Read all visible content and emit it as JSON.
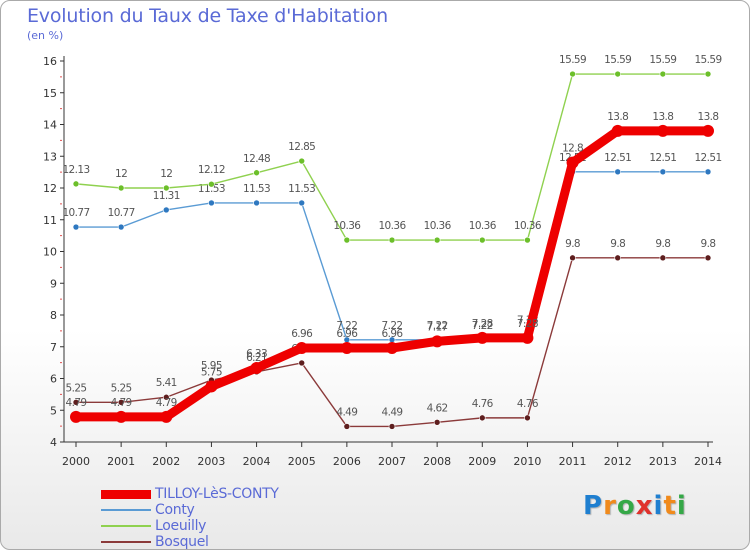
{
  "title": "Evolution du Taux de Taxe d'Habitation",
  "subtitle": "(en %)",
  "logo": {
    "text": "Proxiti",
    "letters": [
      {
        "ch": "P",
        "color": "#1f7fd0"
      },
      {
        "ch": "r",
        "color": "#f08a1c"
      },
      {
        "ch": "o",
        "color": "#35a847"
      },
      {
        "ch": "x",
        "color": "#e0312b"
      },
      {
        "ch": "i",
        "color": "#1f7fd0"
      },
      {
        "ch": "t",
        "color": "#f08a1c"
      },
      {
        "ch": "i",
        "color": "#35a847"
      }
    ]
  },
  "chart_data": {
    "type": "line",
    "title": "Evolution du Taux de Taxe d'Habitation",
    "subtitle": "(en %)",
    "xlabel": "",
    "ylabel": "",
    "categories": [
      "2000",
      "2001",
      "2002",
      "2003",
      "2004",
      "2005",
      "2006",
      "2007",
      "2008",
      "2009",
      "2010",
      "2011",
      "2012",
      "2013",
      "2014"
    ],
    "ylim": [
      4,
      16
    ],
    "yticks": [
      4,
      5,
      6,
      7,
      8,
      9,
      10,
      11,
      12,
      13,
      14,
      15,
      16
    ],
    "grid": false,
    "legend_position": "bottom-left",
    "series": [
      {
        "name": "Conty",
        "color": "#5a9bd4",
        "marker": "#2e78c0",
        "values": [
          10.77,
          10.77,
          11.31,
          11.53,
          11.53,
          11.53,
          7.22,
          7.22,
          7.22,
          7.22,
          7.38,
          12.51,
          12.51,
          12.51,
          12.51
        ],
        "labels": [
          "10.77",
          "10.77",
          "11.31",
          "11.53",
          "11.53",
          "11.53",
          "7.22",
          "7.22",
          "7.22",
          "7.22",
          "7.38",
          "12.51",
          "12.51",
          "12.51",
          "12.51"
        ]
      },
      {
        "name": "Loeuilly",
        "color": "#8fd14f",
        "marker": "#6cbf2a",
        "values": [
          12.13,
          12,
          12,
          12.12,
          12.48,
          12.85,
          10.36,
          10.36,
          10.36,
          10.36,
          10.36,
          15.59,
          15.59,
          15.59,
          15.59
        ],
        "labels": [
          "12.13",
          "12",
          "12",
          "12.12",
          "12.48",
          "12.85",
          "10.36",
          "10.36",
          "10.36",
          "10.36",
          "10.36",
          "15.59",
          "15.59",
          "15.59",
          "15.59"
        ]
      },
      {
        "name": "Bosquel",
        "color": "#8b3a3a",
        "marker": "#5e1e1e",
        "values": [
          5.25,
          5.25,
          5.41,
          5.95,
          6.21,
          6.49,
          4.49,
          4.49,
          4.62,
          4.76,
          4.76,
          9.8,
          9.8,
          9.8,
          9.8
        ],
        "labels": [
          "5.25",
          "5.25",
          "5.41",
          "5.95",
          "6.21",
          "6.49",
          "4.49",
          "4.49",
          "4.62",
          "4.76",
          "4.76",
          "9.8",
          "9.8",
          "9.8",
          "9.8"
        ]
      },
      {
        "name": "TILLOY-LèS-CONTY",
        "color": "#ee0000",
        "marker": "#ee0000",
        "values": [
          4.79,
          4.79,
          4.79,
          5.75,
          6.33,
          6.96,
          6.96,
          6.96,
          7.17,
          7.28,
          7.28,
          12.8,
          13.8,
          13.8,
          13.8
        ],
        "labels": [
          "4.79",
          "4.79",
          "4.79",
          "5.75",
          "6.33",
          "6.96",
          "6.96",
          "6.96",
          "7.17",
          "7.28",
          "7.28",
          "12.8",
          "13.8",
          "13.8",
          "13.8"
        ]
      }
    ]
  }
}
